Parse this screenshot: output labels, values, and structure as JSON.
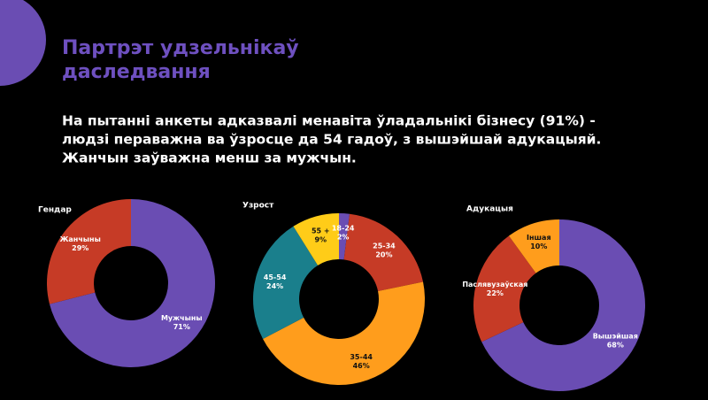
{
  "title": [
    "Партрэт удзельнікаў",
    "даследвання"
  ],
  "body": [
    "На пытанні анкеты адказвалі менавіта ўладальнікі бізнесу (91%) -",
    "людзі пераважна ва ўзросце да 54 гадоў, з вышэйшай адукацыяй.",
    "Жанчын заўважна менш за мужчын."
  ],
  "chart_data": [
    {
      "type": "donut",
      "title": "Гендар",
      "categories": [
        "Мужчыны",
        "Жанчыны"
      ],
      "values": [
        71,
        29
      ],
      "value_labels": [
        "71%",
        "29%"
      ],
      "colors": [
        "#6a4db3",
        "#c63b26"
      ]
    },
    {
      "type": "donut",
      "title": "Узрост",
      "categories": [
        "18-24",
        "25-34",
        "35-44",
        "45-54",
        "55 +"
      ],
      "values": [
        2,
        20,
        46,
        24,
        9
      ],
      "value_labels": [
        "2%",
        "20%",
        "46%",
        "24%",
        "9%"
      ],
      "colors": [
        "#6a4db3",
        "#c63b26",
        "#ff9d1c",
        "#1a7f8c",
        "#ffcc18"
      ]
    },
    {
      "type": "donut",
      "title": "Адукацыя",
      "categories": [
        "Вышэйшая",
        "Паслявузаўская",
        "Іншая"
      ],
      "values": [
        68,
        22,
        10
      ],
      "value_labels": [
        "68%",
        "22%",
        "10%"
      ],
      "colors": [
        "#6a4db3",
        "#c63b26",
        "#ff9d1c"
      ]
    }
  ]
}
